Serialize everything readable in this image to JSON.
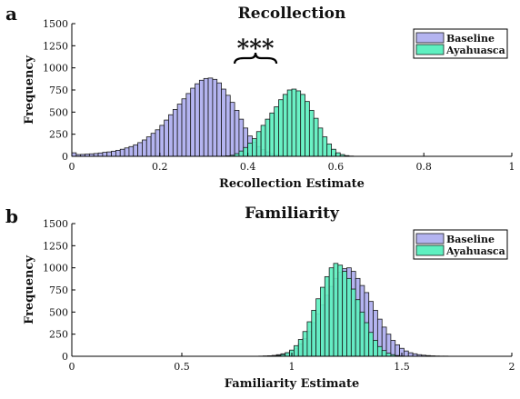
{
  "chart_data": [
    {
      "panel_letter": "a",
      "type": "bar",
      "title": "Recollection",
      "xlabel": "Recollection Estimate",
      "ylabel": "Frequency",
      "xlim": [
        0,
        1
      ],
      "ylim": [
        0,
        1500
      ],
      "xticks": [
        0,
        0.2,
        0.4,
        0.6,
        0.8,
        1
      ],
      "yticks": [
        0,
        250,
        500,
        750,
        1000,
        1250,
        1500
      ],
      "legend_position": "top-right",
      "annotation": {
        "text": "***",
        "bracket_from": 0.37,
        "bracket_to": 0.465
      },
      "series": [
        {
          "name": "Baseline",
          "color": "#b4b4f0",
          "x": [
            0.005,
            0.015,
            0.025,
            0.035,
            0.045,
            0.055,
            0.065,
            0.075,
            0.085,
            0.095,
            0.105,
            0.115,
            0.125,
            0.135,
            0.145,
            0.155,
            0.165,
            0.175,
            0.185,
            0.195,
            0.205,
            0.215,
            0.225,
            0.235,
            0.245,
            0.255,
            0.265,
            0.275,
            0.285,
            0.295,
            0.305,
            0.315,
            0.325,
            0.335,
            0.345,
            0.355,
            0.365,
            0.375,
            0.385,
            0.395,
            0.405,
            0.415,
            0.425,
            0.435,
            0.445,
            0.455,
            0.465,
            0.475,
            0.485,
            0.495,
            0.505
          ],
          "values": [
            40,
            20,
            22,
            25,
            28,
            32,
            38,
            45,
            50,
            58,
            68,
            80,
            95,
            110,
            130,
            155,
            185,
            220,
            260,
            300,
            350,
            410,
            470,
            530,
            590,
            650,
            710,
            770,
            820,
            860,
            880,
            885,
            870,
            830,
            760,
            690,
            610,
            520,
            420,
            320,
            230,
            160,
            110,
            75,
            50,
            30,
            18,
            10,
            6,
            3,
            1
          ]
        },
        {
          "name": "Ayahuasca",
          "color": "#5ef0c0",
          "x": [
            0.345,
            0.355,
            0.365,
            0.375,
            0.385,
            0.395,
            0.405,
            0.415,
            0.425,
            0.435,
            0.445,
            0.455,
            0.465,
            0.475,
            0.485,
            0.495,
            0.505,
            0.515,
            0.525,
            0.535,
            0.545,
            0.555,
            0.565,
            0.575,
            0.585,
            0.595,
            0.605,
            0.615,
            0.625,
            0.635
          ],
          "values": [
            2,
            5,
            12,
            30,
            60,
            100,
            150,
            200,
            280,
            350,
            420,
            490,
            560,
            640,
            700,
            750,
            760,
            740,
            700,
            620,
            520,
            430,
            320,
            220,
            140,
            80,
            40,
            20,
            8,
            3
          ]
        }
      ]
    },
    {
      "panel_letter": "b",
      "type": "bar",
      "title": "Familiarity",
      "xlabel": "Familiarity Estimate",
      "ylabel": "Frequency",
      "xlim": [
        0,
        2
      ],
      "ylim": [
        0,
        1500
      ],
      "xticks": [
        0,
        0.5,
        1,
        1.5,
        2
      ],
      "yticks": [
        0,
        250,
        500,
        750,
        1000,
        1250,
        1500
      ],
      "legend_position": "top-right",
      "series": [
        {
          "name": "Baseline",
          "color": "#b4b4f0",
          "x": [
            0.86,
            0.88,
            0.9,
            0.92,
            0.94,
            0.96,
            0.98,
            1.0,
            1.02,
            1.04,
            1.06,
            1.08,
            1.1,
            1.12,
            1.14,
            1.16,
            1.18,
            1.2,
            1.22,
            1.24,
            1.26,
            1.28,
            1.3,
            1.32,
            1.34,
            1.36,
            1.38,
            1.4,
            1.42,
            1.44,
            1.46,
            1.48,
            1.5,
            1.52,
            1.54,
            1.56,
            1.58,
            1.6,
            1.62,
            1.64,
            1.66,
            1.68,
            1.7,
            1.72,
            1.74
          ],
          "values": [
            2,
            4,
            6,
            10,
            18,
            28,
            40,
            60,
            90,
            140,
            200,
            280,
            380,
            480,
            580,
            690,
            790,
            880,
            950,
            990,
            1000,
            960,
            880,
            800,
            720,
            620,
            520,
            420,
            330,
            250,
            180,
            130,
            90,
            60,
            40,
            28,
            18,
            12,
            8,
            5,
            3,
            2,
            2,
            1,
            1
          ]
        },
        {
          "name": "Ayahuasca",
          "color": "#5ef0c0",
          "x": [
            0.9,
            0.92,
            0.94,
            0.96,
            0.98,
            1.0,
            1.02,
            1.04,
            1.06,
            1.08,
            1.1,
            1.12,
            1.14,
            1.16,
            1.18,
            1.2,
            1.22,
            1.24,
            1.26,
            1.28,
            1.3,
            1.32,
            1.34,
            1.36,
            1.38,
            1.4,
            1.42,
            1.44,
            1.46,
            1.48,
            1.5
          ],
          "values": [
            2,
            5,
            10,
            20,
            40,
            70,
            120,
            190,
            280,
            390,
            520,
            650,
            780,
            900,
            1000,
            1050,
            1030,
            960,
            880,
            760,
            640,
            500,
            380,
            270,
            180,
            110,
            65,
            35,
            18,
            8,
            3
          ]
        }
      ]
    }
  ]
}
